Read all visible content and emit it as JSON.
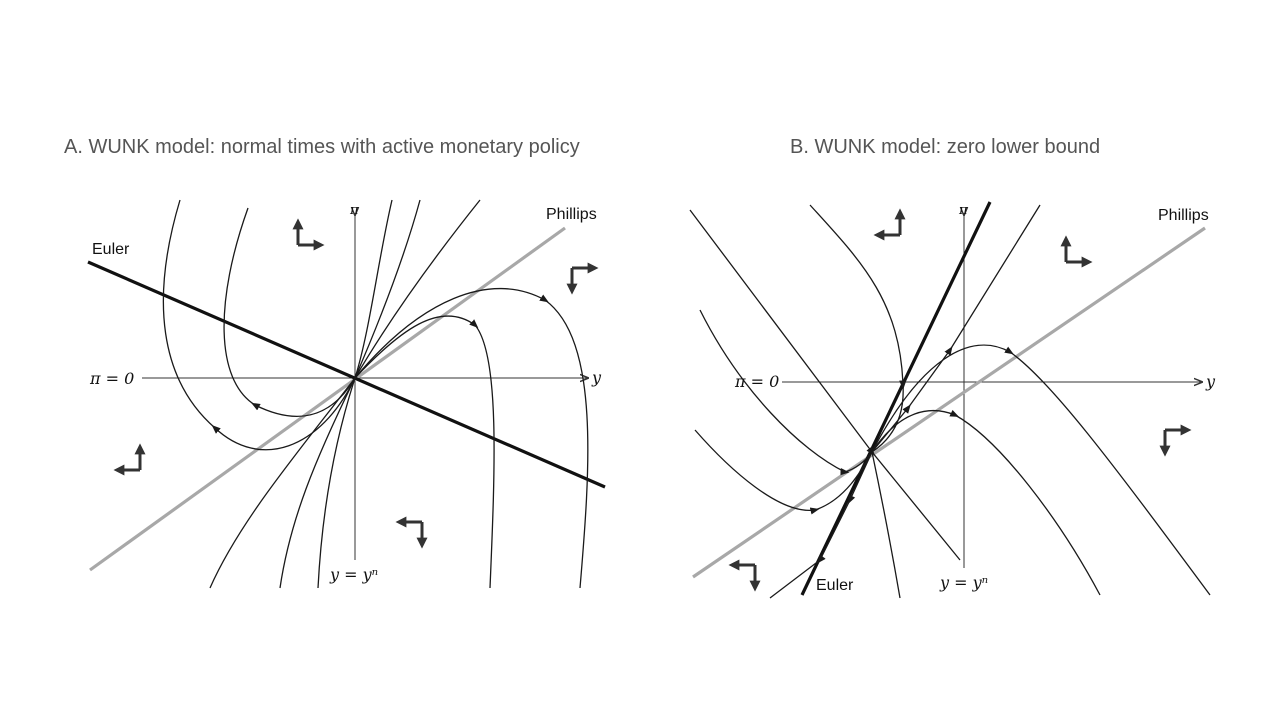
{
  "panel_a": {
    "title": "A. WUNK model: normal times with active monetary policy",
    "euler_label": "Euler",
    "phillips_label": "Phillips",
    "pi_axis_label": "π",
    "y_axis_label": "y",
    "pi_zero_label": "π = 0",
    "y_natural_label": "y = yⁿ"
  },
  "panel_b": {
    "title": "B. WUNK model: zero lower bound",
    "euler_label": "Euler",
    "phillips_label": "Phillips",
    "pi_axis_label": "π",
    "y_axis_label": "y",
    "pi_zero_label": "π = 0",
    "y_natural_label": "y = yⁿ"
  },
  "colors": {
    "euler": "#111111",
    "phillips": "#a8a8a8",
    "trajectory": "#1a1a1a",
    "axis": "#333333",
    "title": "#555555"
  },
  "icons": [
    "direction-arrow-icon"
  ]
}
